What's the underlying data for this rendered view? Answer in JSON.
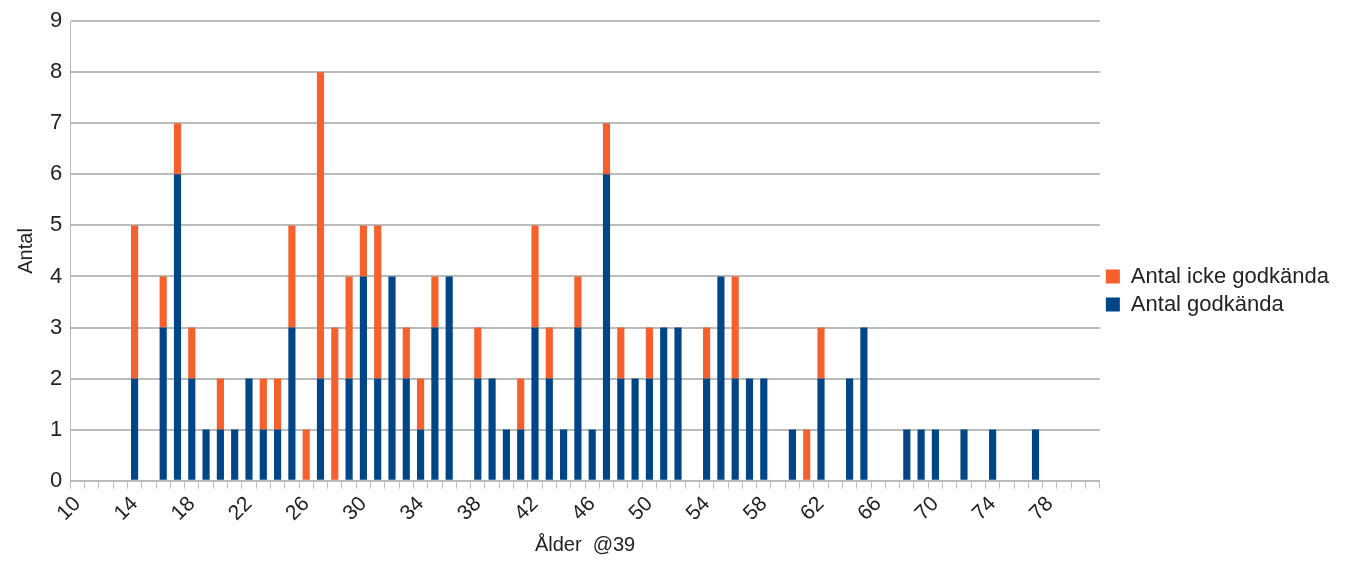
{
  "chart_data": {
    "type": "bar",
    "stacked": true,
    "xlabel": "Ålder  @39",
    "ylabel": "Antal",
    "categories": [
      "10",
      null,
      null,
      null,
      "14",
      null,
      null,
      null,
      "18",
      null,
      null,
      null,
      "22",
      null,
      null,
      null,
      "26",
      null,
      null,
      null,
      "30",
      null,
      null,
      null,
      "34",
      null,
      null,
      null,
      "38",
      null,
      null,
      null,
      "42",
      null,
      null,
      null,
      "46",
      null,
      null,
      null,
      "50",
      null,
      null,
      null,
      "54",
      null,
      null,
      null,
      "58",
      null,
      null,
      null,
      "62",
      null,
      null,
      null,
      "66",
      null,
      null,
      null,
      "70",
      null,
      null,
      null,
      "74",
      null,
      null,
      null,
      "78",
      null,
      null,
      null
    ],
    "series": [
      {
        "name": "Antal godkända",
        "color": "#004586",
        "values": [
          0,
          0,
          0,
          0,
          2,
          0,
          3,
          6,
          2,
          1,
          1,
          1,
          2,
          1,
          1,
          3,
          0,
          2,
          0,
          2,
          4,
          2,
          4,
          2,
          1,
          3,
          4,
          0,
          2,
          2,
          1,
          1,
          3,
          2,
          1,
          3,
          1,
          6,
          2,
          2,
          2,
          3,
          3,
          0,
          2,
          4,
          2,
          2,
          2,
          0,
          1,
          0,
          2,
          0,
          2,
          3,
          0,
          0,
          1,
          1,
          1,
          0,
          1,
          0,
          1,
          0,
          0,
          1,
          0,
          0,
          0,
          0
        ]
      },
      {
        "name": "Antal icke godkända",
        "color": "#f5602c",
        "values": [
          0,
          0,
          0,
          0,
          3,
          0,
          1,
          1,
          1,
          0,
          1,
          0,
          0,
          1,
          1,
          2,
          1,
          6,
          3,
          2,
          1,
          3,
          0,
          1,
          1,
          1,
          0,
          0,
          1,
          0,
          0,
          1,
          2,
          1,
          0,
          1,
          0,
          1,
          1,
          0,
          1,
          0,
          0,
          0,
          1,
          0,
          2,
          0,
          0,
          0,
          0,
          1,
          1,
          0,
          0,
          0,
          0,
          0,
          0,
          0,
          0,
          0,
          0,
          0,
          0,
          0,
          0,
          0,
          0,
          0,
          0,
          0
        ]
      }
    ],
    "ylim": [
      0,
      9
    ],
    "yticks": [
      0,
      1,
      2,
      3,
      4,
      5,
      6,
      7,
      8,
      9
    ],
    "grid": "y",
    "legend": "right"
  }
}
